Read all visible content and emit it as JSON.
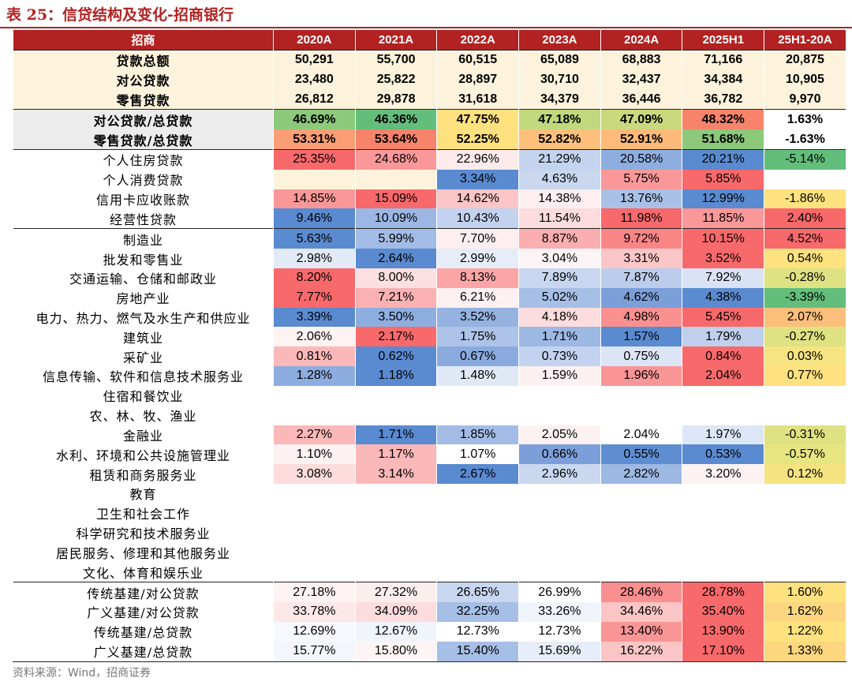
{
  "title": "表 25：信贷结构及变化-招商银行",
  "source": "资料来源：Wind，招商证券",
  "chart_data": {
    "type": "table",
    "columns": [
      "招商",
      "2020A",
      "2021A",
      "2022A",
      "2023A",
      "2024A",
      "2025H1",
      "25H1-20A"
    ],
    "sections": [
      {
        "style": "s1",
        "rows": [
          {
            "label": "贷款总额",
            "values": [
              "50,291",
              "55,700",
              "60,515",
              "65,089",
              "68,883",
              "71,166",
              "20,875"
            ],
            "colors": []
          },
          {
            "label": "对公贷款",
            "values": [
              "23,480",
              "25,822",
              "28,897",
              "30,710",
              "32,437",
              "34,384",
              "10,905"
            ],
            "colors": []
          },
          {
            "label": "零售贷款",
            "values": [
              "26,812",
              "29,878",
              "31,618",
              "34,379",
              "36,446",
              "36,782",
              "9,970"
            ],
            "colors": []
          }
        ]
      },
      {
        "style": "s2",
        "rows": [
          {
            "label": "对公贷款/总贷款",
            "values": [
              "46.69%",
              "46.36%",
              "47.75%",
              "47.18%",
              "47.09%",
              "48.32%",
              "1.63%"
            ],
            "colors": [
              "#8cc97a",
              "#63be7b",
              "#ffe17f",
              "#c2d87e",
              "#cad87e",
              "#f8836b",
              "#ffffff"
            ]
          },
          {
            "label": "零售贷款/总贷款",
            "values": [
              "53.31%",
              "53.64%",
              "52.25%",
              "52.82%",
              "52.91%",
              "51.68%",
              "-1.63%"
            ],
            "colors": [
              "#fb9d75",
              "#f8836b",
              "#fee17f",
              "#fdc07c",
              "#fdba7a",
              "#8cc97a",
              "#ffffff"
            ]
          }
        ]
      },
      {
        "style": "s3",
        "rows": [
          {
            "label": "个人住房贷款",
            "values": [
              "25.35%",
              "24.68%",
              "22.96%",
              "21.29%",
              "20.58%",
              "20.21%",
              "-5.14%"
            ],
            "colors": [
              "#f8696b",
              "#fa9899",
              "#fdebec",
              "#c5d4ee",
              "#8faee0",
              "#5a8ad0",
              "#63be7b"
            ]
          },
          {
            "label": "个人消费贷款",
            "values": [
              "",
              "",
              "3.34%",
              "4.63%",
              "5.75%",
              "5.85%",
              ""
            ],
            "colors": [
              "#fdf3dc",
              "#fdf3dc",
              "#5a8ad0",
              "#c9d7ef",
              "#fa9899",
              "#f8696b",
              "#ffffff"
            ]
          },
          {
            "label": "信用卡应收账款",
            "values": [
              "14.85%",
              "15.09%",
              "14.62%",
              "14.38%",
              "13.76%",
              "12.99%",
              "-1.86%"
            ],
            "colors": [
              "#fa9899",
              "#f8696b",
              "#fbc5c6",
              "#fdeff0",
              "#a9c1e7",
              "#5a8ad0",
              "#fee27f"
            ]
          },
          {
            "label": "经营性贷款",
            "values": [
              "9.46%",
              "10.09%",
              "10.43%",
              "11.54%",
              "11.98%",
              "11.85%",
              "2.40%"
            ],
            "colors": [
              "#5a8ad0",
              "#9cb7e3",
              "#c3d2ee",
              "#fcdcdc",
              "#f8696b",
              "#fa9899",
              "#f8696b"
            ]
          }
        ]
      },
      {
        "style": "s4",
        "rows": [
          {
            "label": "制造业",
            "values": [
              "5.63%",
              "5.99%",
              "7.70%",
              "8.87%",
              "9.72%",
              "10.15%",
              "4.52%"
            ],
            "colors": [
              "#5a8ad0",
              "#a3bce5",
              "#fdeff0",
              "#fbaeaf",
              "#fa8586",
              "#f8696b",
              "#f8696b"
            ]
          },
          {
            "label": "批发和零售业",
            "values": [
              "2.98%",
              "2.64%",
              "2.99%",
              "3.04%",
              "3.31%",
              "3.52%",
              "0.54%"
            ],
            "colors": [
              "#e3eaf7",
              "#5a8ad0",
              "#e6edf8",
              "#fdf5f5",
              "#fbc6c7",
              "#f8696b",
              "#fee27f"
            ]
          },
          {
            "label": "交通运输、仓储和邮政业",
            "values": [
              "8.20%",
              "8.00%",
              "8.13%",
              "7.89%",
              "7.87%",
              "7.92%",
              "-0.28%"
            ],
            "colors": [
              "#f8696b",
              "#fcdfe0",
              "#fba5a6",
              "#c8d6ef",
              "#bccdeb",
              "#d9e3f5",
              "#dfe282"
            ]
          },
          {
            "label": "房地产业",
            "values": [
              "7.77%",
              "7.21%",
              "6.21%",
              "5.02%",
              "4.62%",
              "4.38%",
              "-3.39%"
            ],
            "colors": [
              "#f8696b",
              "#fbb1b2",
              "#fdf1f2",
              "#a6bfe6",
              "#7b9fd9",
              "#5a8ad0",
              "#63be7b"
            ]
          },
          {
            "label": "电力、热力、燃气及水生产和供应业",
            "values": [
              "3.39%",
              "3.50%",
              "3.52%",
              "4.18%",
              "4.98%",
              "5.45%",
              "2.07%"
            ],
            "colors": [
              "#5a8ad0",
              "#8faee0",
              "#95b2e1",
              "#fcdcdc",
              "#fa9191",
              "#f8696b",
              "#fcbf7b"
            ]
          },
          {
            "label": "建筑业",
            "values": [
              "2.06%",
              "2.17%",
              "1.75%",
              "1.71%",
              "1.57%",
              "1.79%",
              "-0.27%"
            ],
            "colors": [
              "#fdf3f3",
              "#f8696b",
              "#adc3e7",
              "#9db8e3",
              "#5a8ad0",
              "#bfcfec",
              "#dee282"
            ]
          },
          {
            "label": "采矿业",
            "values": [
              "0.81%",
              "0.62%",
              "0.67%",
              "0.73%",
              "0.75%",
              "0.84%",
              "0.03%"
            ],
            "colors": [
              "#fbb8b9",
              "#5a8ad0",
              "#8aaade",
              "#c3d2ee",
              "#dce5f5",
              "#f8696b",
              "#f6e381"
            ]
          },
          {
            "label": "信息传输、软件和信息技术服务业",
            "values": [
              "1.28%",
              "1.18%",
              "1.48%",
              "1.59%",
              "1.96%",
              "2.04%",
              "0.77%"
            ],
            "colors": [
              "#8dacdf",
              "#5a8ad0",
              "#e0e8f6",
              "#fdf0f0",
              "#fa9596",
              "#f8696b",
              "#ffe17f"
            ]
          },
          {
            "label": "住宿和餐饮业",
            "values": [
              "",
              "",
              "",
              "",
              "",
              "",
              ""
            ],
            "colors": []
          },
          {
            "label": "农、林、牧、渔业",
            "values": [
              "",
              "",
              "",
              "",
              "",
              "",
              ""
            ],
            "colors": []
          },
          {
            "label": "金融业",
            "values": [
              "2.27%",
              "1.71%",
              "1.85%",
              "2.05%",
              "2.04%",
              "1.97%",
              "-0.31%"
            ],
            "colors": [
              "#fbb8b9",
              "#5a8ad0",
              "#a3bce5",
              "#fdf2f2",
              "#ffffff",
              "#dde6f6",
              "#dfe282"
            ]
          },
          {
            "label": "水利、环境和公共设施管理业",
            "values": [
              "1.10%",
              "1.17%",
              "1.07%",
              "0.66%",
              "0.55%",
              "0.53%",
              "-0.57%"
            ],
            "colors": [
              "#fdf2f2",
              "#fbb8b9",
              "#ffffff",
              "#7c9fd9",
              "#5e8dd1",
              "#5a8ad0",
              "#e7e482"
            ]
          },
          {
            "label": "租赁和商务服务业",
            "values": [
              "3.08%",
              "3.14%",
              "2.67%",
              "2.96%",
              "2.82%",
              "3.20%",
              "0.12%"
            ],
            "colors": [
              "#fcdcdc",
              "#fbb8b9",
              "#5a8ad0",
              "#c9d7ef",
              "#9db8e3",
              "#fdf2f2",
              "#f4e380"
            ]
          },
          {
            "label": "教育",
            "values": [
              "",
              "",
              "",
              "",
              "",
              "",
              ""
            ],
            "colors": []
          },
          {
            "label": "卫生和社会工作",
            "values": [
              "",
              "",
              "",
              "",
              "",
              "",
              ""
            ],
            "colors": []
          },
          {
            "label": "科学研究和技术服务业",
            "values": [
              "",
              "",
              "",
              "",
              "",
              "",
              ""
            ],
            "colors": []
          },
          {
            "label": "居民服务、修理和其他服务业",
            "values": [
              "",
              "",
              "",
              "",
              "",
              "",
              ""
            ],
            "colors": []
          },
          {
            "label": "文化、体育和娱乐业",
            "values": [
              "",
              "",
              "",
              "",
              "",
              "",
              ""
            ],
            "colors": []
          }
        ]
      },
      {
        "style": "s5",
        "rows": [
          {
            "label": "传统基建/对公贷款",
            "values": [
              "27.18%",
              "27.32%",
              "26.65%",
              "26.99%",
              "28.46%",
              "28.78%",
              "1.60%"
            ],
            "colors": [
              "#fdf3f3",
              "#fdeeee",
              "#c8d6ef",
              "#ffffff",
              "#fa8f90",
              "#f8696b",
              "#fee27f"
            ]
          },
          {
            "label": "广义基建/对公贷款",
            "values": [
              "33.78%",
              "34.09%",
              "32.25%",
              "33.26%",
              "34.46%",
              "35.40%",
              "1.62%"
            ],
            "colors": [
              "#fde8e8",
              "#fcdcdc",
              "#a6bfe6",
              "#f0f4fb",
              "#fbc5c6",
              "#f8696b",
              "#fdd780"
            ]
          },
          {
            "label": "传统基建/总贷款",
            "values": [
              "12.69%",
              "12.67%",
              "12.73%",
              "12.73%",
              "13.40%",
              "13.90%",
              "1.22%"
            ],
            "colors": [
              "#f6f8fd",
              "#f0f4fb",
              "#ffffff",
              "#ffffff",
              "#fa9596",
              "#f8696b",
              "#fee27f"
            ]
          },
          {
            "label": "广义基建/总贷款",
            "values": [
              "15.77%",
              "15.80%",
              "15.40%",
              "15.69%",
              "16.22%",
              "17.10%",
              "1.33%"
            ],
            "colors": [
              "#f3f6fc",
              "#fdf5f5",
              "#a6bfe6",
              "#e6edf8",
              "#fbc5c6",
              "#f8696b",
              "#fdd780"
            ]
          }
        ]
      }
    ]
  }
}
